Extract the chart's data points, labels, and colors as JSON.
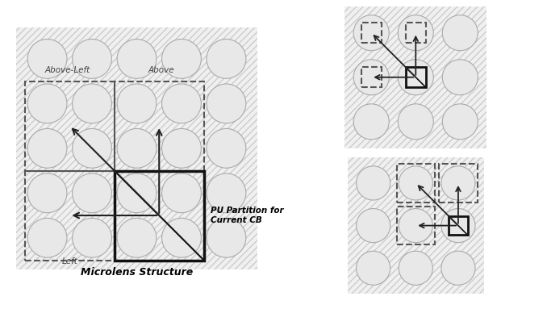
{
  "circle_fill": "#e8e8e8",
  "circle_edge": "#aaaaaa",
  "hatch_fill": "#f0f0f0",
  "hatch_edge": "#cccccc",
  "dash_edge": "#555555",
  "solid_edge": "#111111",
  "arrow_color": "#222222",
  "text_color": "#444444",
  "label_above_left": "Above-Left",
  "label_above": "Above",
  "label_left": "Left",
  "label_pu": "PU Partition for\nCurrent CB",
  "title_left": "Microlens Structure"
}
